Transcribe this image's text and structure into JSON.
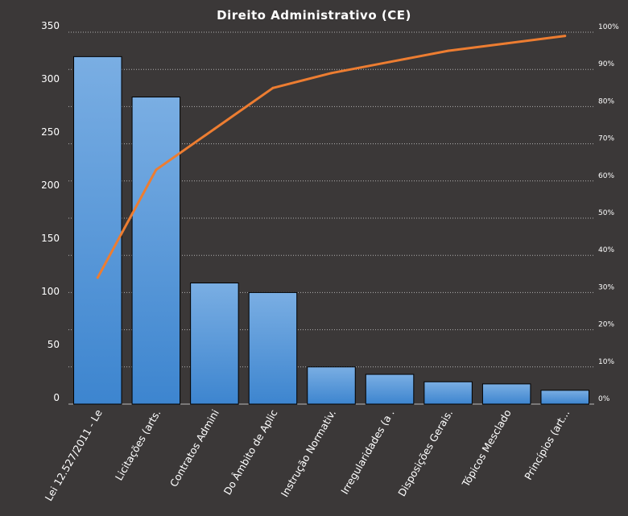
{
  "chart_data": {
    "type": "bar",
    "title": "Direito  Administrativo  (CE)",
    "categories": [
      "Lei 12.527/2011 - Le",
      "Licitações (arts.",
      "Contratos Admini",
      "Do Âmbito de Aplic",
      "Instrução Normativ.",
      "Irregularidades (a .",
      "Disposições Gerais.",
      "Tópicos Mesclado",
      "Princípios (art..."
    ],
    "series": [
      {
        "type": "bar",
        "values": [
          327,
          289,
          114,
          105,
          35,
          28,
          21,
          19,
          13
        ]
      },
      {
        "type": "line",
        "axis": "secondary",
        "values": [
          0.34,
          0.63,
          0.74,
          0.85,
          0.89,
          0.92,
          0.95,
          0.97,
          0.99
        ]
      }
    ],
    "ylim": [
      0,
      350
    ],
    "yticks": [
      "0",
      "50",
      "100",
      "150",
      "200",
      "250",
      "300",
      "350"
    ],
    "y2lim": [
      0,
      1
    ],
    "y2ticks": [
      "0%",
      "10%",
      "20%",
      "30%",
      "40%",
      "50%",
      "60%",
      "70%",
      "80%",
      "90%",
      "100%"
    ],
    "grid": true,
    "colors": {
      "background": "#3b3838",
      "bar_top": "#7aaee3",
      "bar_bottom": "#3d85cf",
      "bar_stroke": "#000000",
      "line": "#ed7d31",
      "grid": "#d9d9d9",
      "text": "#ffffff"
    }
  }
}
